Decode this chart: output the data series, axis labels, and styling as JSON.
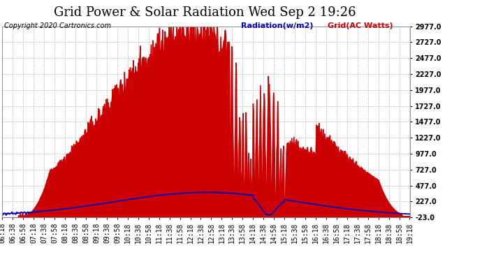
{
  "title": "Grid Power & Solar Radiation Wed Sep 2 19:26",
  "copyright": "Copyright 2020 Cartronics.com",
  "legend_radiation": "Radiation(w/m2)",
  "legend_grid": "Grid(AC Watts)",
  "ylabel_right_ticks": [
    -23.0,
    227.0,
    477.0,
    727.0,
    977.0,
    1227.0,
    1477.0,
    1727.0,
    1977.0,
    2227.0,
    2477.0,
    2727.0,
    2977.0
  ],
  "ymin": -23.0,
  "ymax": 2977.0,
  "background_color": "#ffffff",
  "grid_color": "#bbbbbb",
  "red_color": "#cc0000",
  "blue_color": "#0000bb",
  "title_fontsize": 13,
  "copyright_fontsize": 7,
  "legend_fontsize": 8,
  "tick_fontsize": 7,
  "total_minutes": 780,
  "num_points": 780
}
